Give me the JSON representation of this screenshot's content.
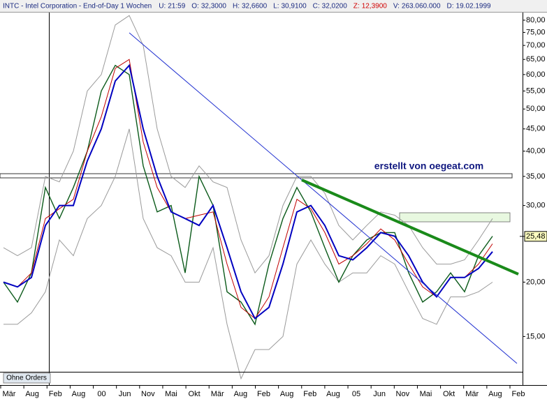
{
  "chart_data": {
    "type": "line",
    "title": "INTC - Intel Corporation - End-of-Day 1 Wochen",
    "quote_fields": [
      {
        "label": "U:",
        "value": "21:59"
      },
      {
        "label": "O:",
        "value": "32,3000"
      },
      {
        "label": "H:",
        "value": "32,6600"
      },
      {
        "label": "L:",
        "value": "30,9100"
      },
      {
        "label": "C:",
        "value": "32,0200"
      },
      {
        "label": "Z:",
        "value": "12,3900"
      },
      {
        "label": "V:",
        "value": "263.060.000"
      },
      {
        "label": "D:",
        "value": "19.02.1999"
      }
    ],
    "annotation": "erstellt von oegeat.com",
    "order_button": "Ohne Orders",
    "log_scale": true,
    "ylim": [
      11.6,
      83.3
    ],
    "yticks": [
      {
        "value": 15,
        "label": "15,00"
      },
      {
        "value": 20,
        "label": "20,00"
      },
      {
        "value": 30,
        "label": "30,00"
      },
      {
        "value": 35,
        "label": "35,00"
      },
      {
        "value": 40,
        "label": "40,00"
      },
      {
        "value": 45,
        "label": "45,00"
      },
      {
        "value": 50,
        "label": "50,00"
      },
      {
        "value": 55,
        "label": "55,00"
      },
      {
        "value": 60,
        "label": "60,00"
      },
      {
        "value": 65,
        "label": "65,00"
      },
      {
        "value": 70,
        "label": "70,00"
      },
      {
        "value": 75,
        "label": "75,00"
      },
      {
        "value": 80,
        "label": "80,00"
      }
    ],
    "last_price": {
      "value": 25.48,
      "label": "25,48"
    },
    "x_labels": [
      "Mär",
      "Aug",
      "Feb",
      "Aug",
      "00",
      "Jun",
      "Nov",
      "Mai",
      "Okt",
      "Mär",
      "Aug",
      "Feb",
      "Aug",
      "Feb",
      "Aug",
      "05",
      "Jun",
      "Nov",
      "Mai",
      "Okt",
      "Mär",
      "Aug",
      "Feb"
    ],
    "series": [
      {
        "name": "Bollinger oben",
        "color": "#9a9a9a",
        "values": [
          24,
          23,
          24,
          35,
          34,
          40,
          55,
          60,
          78,
          82,
          70,
          45,
          35,
          33,
          37,
          34,
          33,
          25,
          21,
          23,
          30,
          35,
          35,
          32,
          27,
          25,
          27,
          29,
          28.5,
          27,
          24,
          22,
          22,
          22.5,
          25,
          28
        ]
      },
      {
        "name": "Bollinger unten",
        "color": "#9a9a9a",
        "values": [
          16,
          16,
          17,
          19,
          25,
          23,
          28,
          30,
          35,
          45,
          28,
          24,
          23,
          20,
          20,
          24,
          16,
          12,
          14,
          14,
          15,
          22,
          25,
          22,
          20,
          21,
          21,
          23,
          22,
          19,
          16.5,
          16,
          18.5,
          18.5,
          19,
          20
        ]
      },
      {
        "name": "Kurs",
        "color": "#0b5a1a",
        "values": [
          20,
          18,
          21,
          33,
          28,
          33,
          40,
          55,
          63,
          60,
          37,
          29,
          30,
          21,
          35,
          30,
          19,
          18,
          16,
          22,
          28,
          33,
          29,
          24,
          20,
          23,
          25,
          26,
          26,
          21,
          18,
          19,
          21,
          19,
          23,
          25.5
        ]
      },
      {
        "name": "MA rot",
        "color": "#c00000",
        "values": [
          20,
          19.5,
          21,
          28,
          29.5,
          31,
          40,
          48,
          62,
          65,
          42,
          33,
          29,
          28,
          28.5,
          29,
          22,
          17.5,
          16.5,
          18.5,
          24,
          31,
          29.5,
          26,
          22,
          23,
          24.5,
          26.5,
          25,
          22,
          19.5,
          18.5,
          20.5,
          20.5,
          22,
          24.5
        ]
      },
      {
        "name": "MA blau",
        "color": "#0000c0",
        "values": [
          20,
          19.5,
          20.5,
          27,
          30,
          30,
          38,
          45,
          58,
          63,
          45,
          35,
          29,
          28,
          27,
          30,
          24,
          19,
          16.5,
          17.5,
          22,
          29,
          30,
          27,
          23,
          22.5,
          24,
          26,
          25.5,
          23,
          20,
          18.5,
          20.5,
          20.5,
          21.5,
          23.5
        ]
      }
    ]
  }
}
